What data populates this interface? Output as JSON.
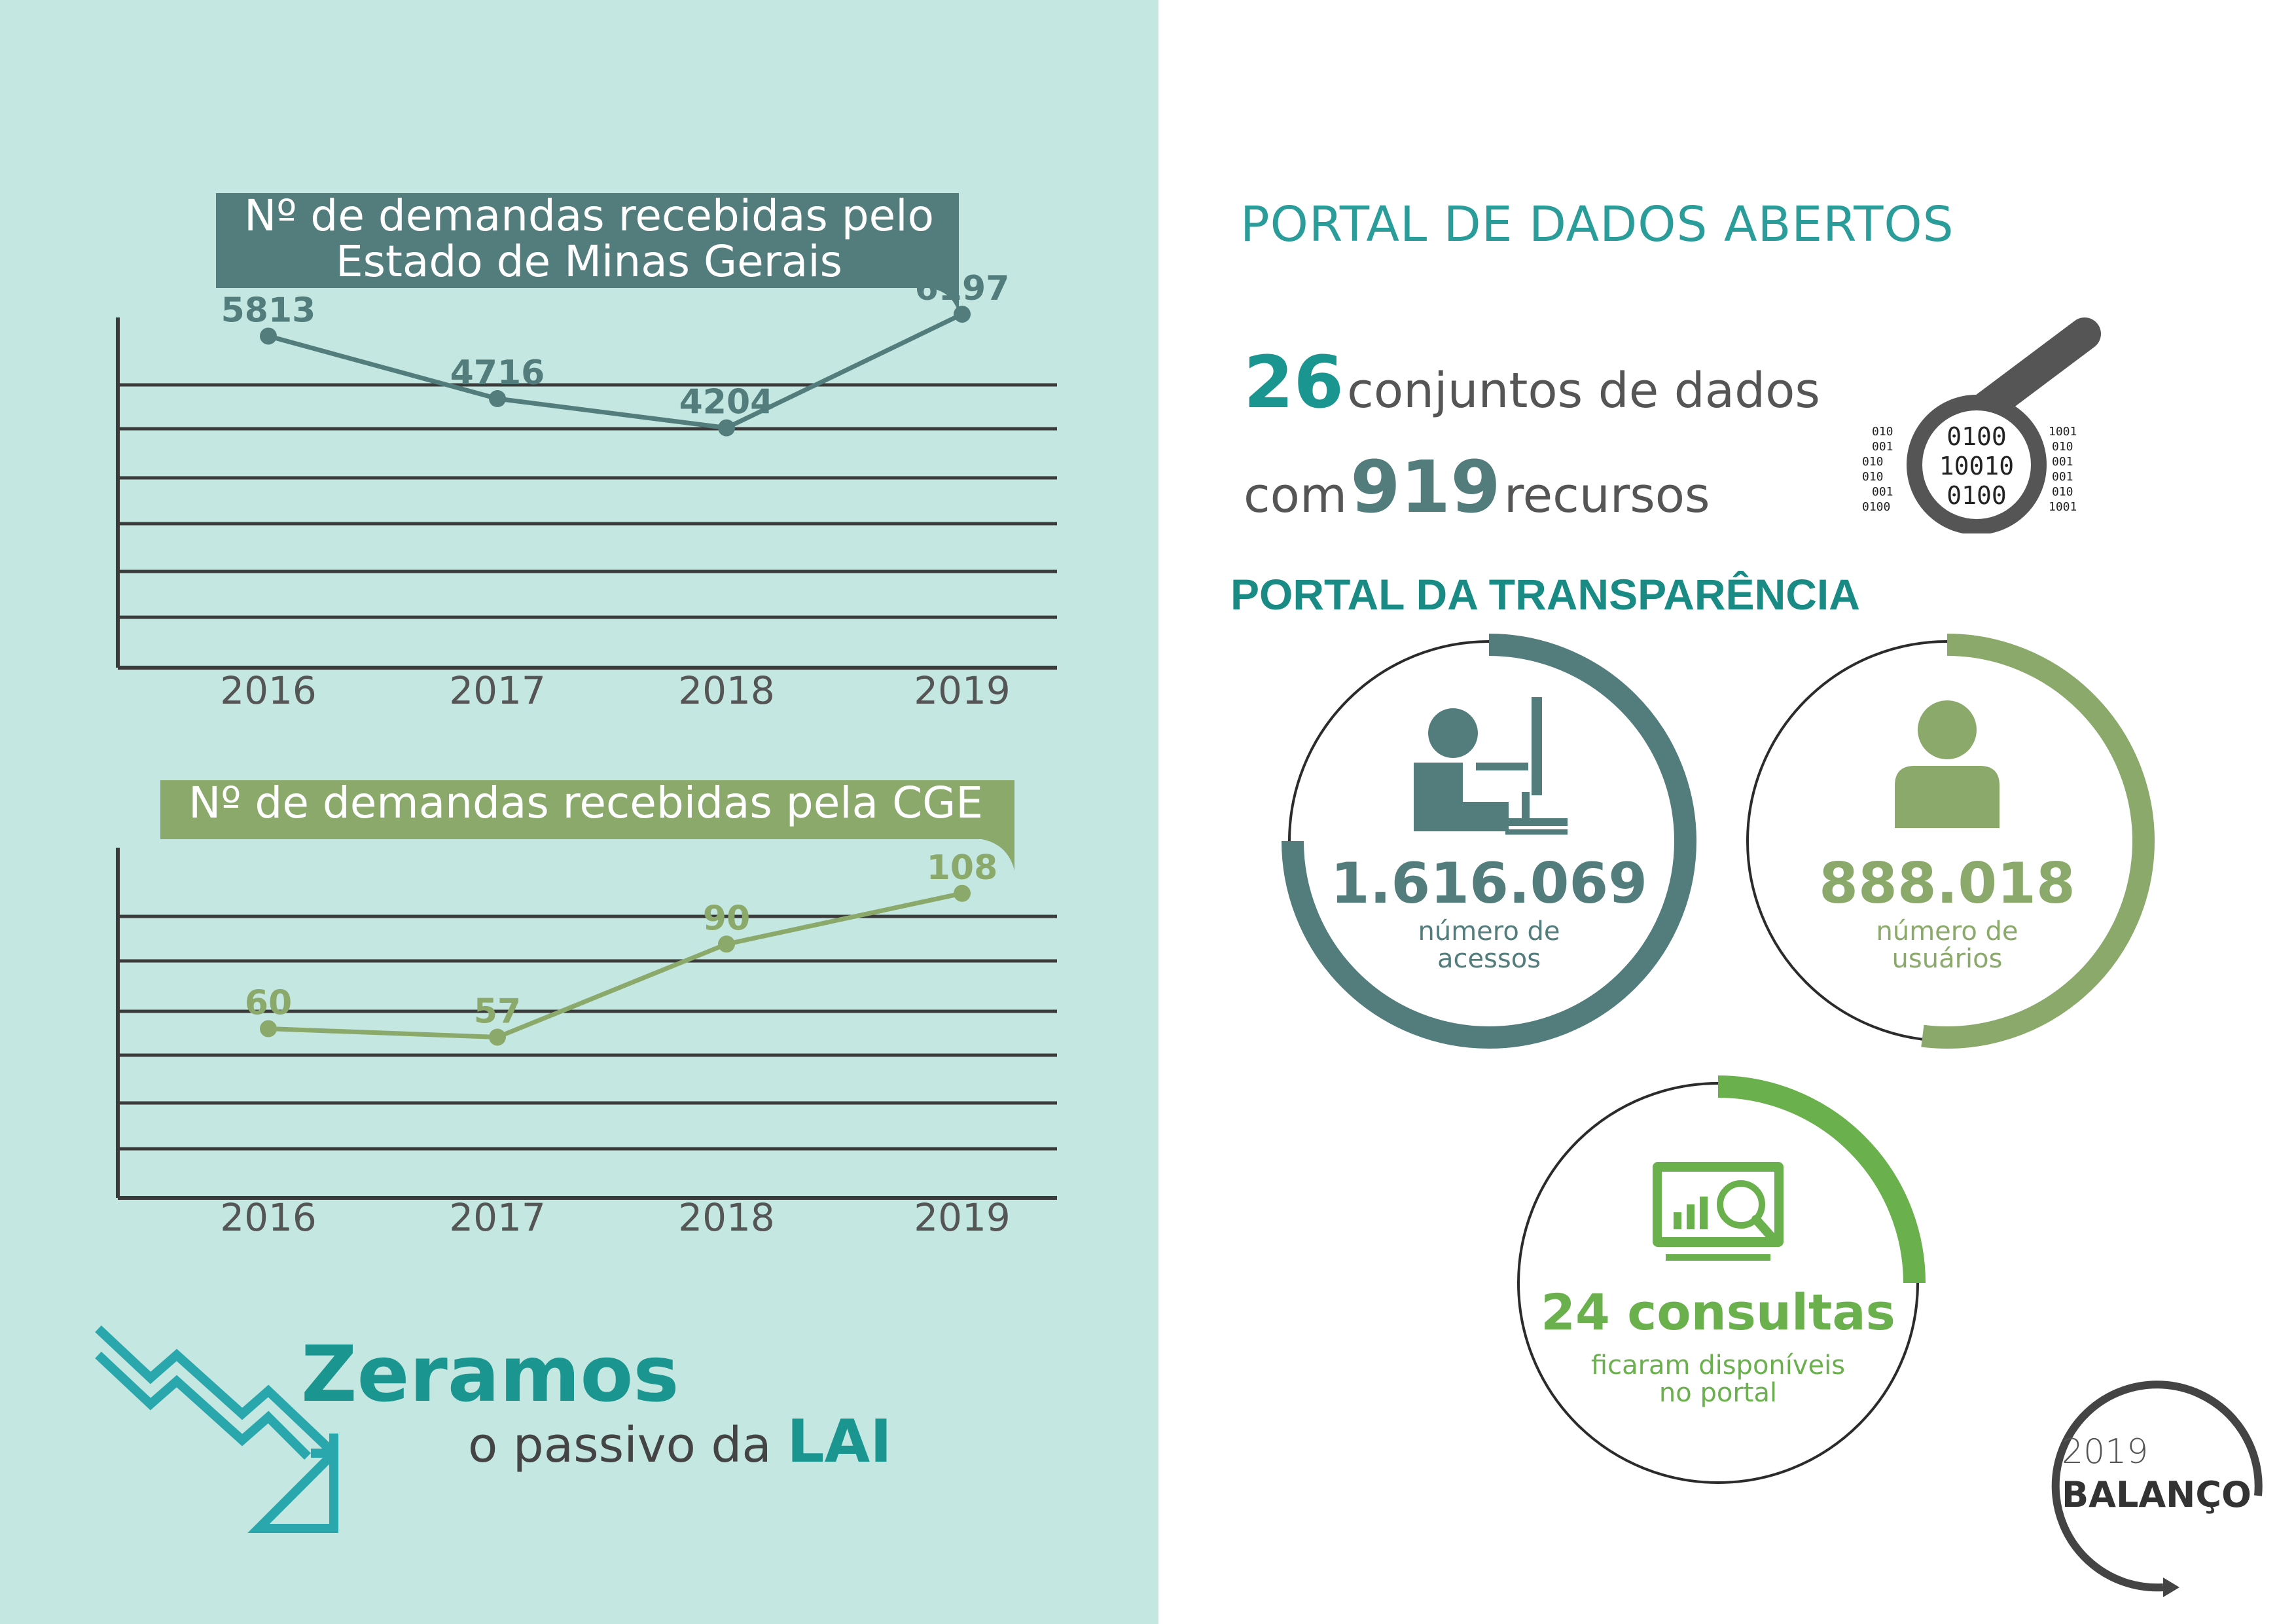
{
  "colors": {
    "left_bg": "#c5e7e2",
    "teal_dark": "#537d7c",
    "olive": "#8aa96a",
    "teal_bright": "#1a9590",
    "green": "#6ab04c",
    "grid": "#3b3b3b",
    "gray_text": "#555555"
  },
  "chart_data": [
    {
      "type": "line",
      "title": "Nº de demandas recebidas pelo Estado de Minas Gerais",
      "title_line1": "Nº de demandas recebidas pelo",
      "title_line2": "Estado de Minas Gerais",
      "categories": [
        "2016",
        "2017",
        "2018",
        "2019"
      ],
      "series": [
        {
          "values": [
            5813,
            4716,
            4204,
            6197
          ]
        }
      ],
      "value_labels": [
        "5813",
        "4716",
        "4204",
        "6197"
      ],
      "ylim": [
        0,
        7000
      ],
      "grid": true,
      "color": "#537d7c"
    },
    {
      "type": "line",
      "title": "Nº de demandas recebidas pela CGE",
      "categories": [
        "2016",
        "2017",
        "2018",
        "2019"
      ],
      "series": [
        {
          "values": [
            60,
            57,
            90,
            108
          ]
        }
      ],
      "value_labels": [
        "60",
        "57",
        "90",
        "108"
      ],
      "ylim": [
        0,
        130
      ],
      "grid": true,
      "color": "#8aa96a"
    }
  ],
  "lai": {
    "headline": "Zeramos",
    "sub_prefix": "o passivo da",
    "sub_bold": "LAI",
    "icon": "downtrend-arrow-icon"
  },
  "dados_abertos": {
    "title": "PORTAL DE DADOS ABERTOS",
    "datasets_number": "26",
    "datasets_text": "conjuntos de dados",
    "resources_prefix": "com",
    "resources_number": "919",
    "resources_text": "recursos",
    "icon": "magnifier-binary-icon",
    "binary_rows": [
      "0100",
      "10010",
      "0100"
    ],
    "binary_side_left": [
      "010",
      "001",
      "010",
      "010",
      "001",
      "0100"
    ],
    "binary_side_right": [
      "1001",
      "010",
      "001",
      "001",
      "010",
      "1001"
    ]
  },
  "transparencia": {
    "title": "PORTAL DA TRANSPARÊNCIA",
    "acessos": {
      "value": "1.616.069",
      "label_line1": "número de",
      "label_line2": "acessos",
      "icon": "user-computer-icon",
      "progress": 0.75
    },
    "usuarios": {
      "value": "888.018",
      "label_line1": "número de",
      "label_line2": "usuários",
      "icon": "user-icon",
      "progress": 0.52
    },
    "consultas": {
      "value": "24 consultas",
      "label_line1": "ficaram disponíveis",
      "label_line2": "no portal",
      "icon": "monitor-chart-icon",
      "progress": 0.25
    }
  },
  "balanco": {
    "year": "2019",
    "label": "BALANÇO"
  }
}
